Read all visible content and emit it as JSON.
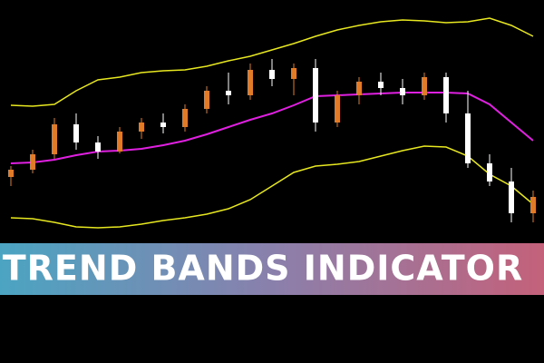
{
  "chart_data": {
    "type": "candlestick",
    "title": "TREND BANDS INDICATOR",
    "categories": [
      null,
      null,
      null,
      null,
      null,
      null,
      null,
      null,
      null,
      null,
      null,
      null,
      null,
      null,
      null,
      null,
      null,
      null,
      null,
      null,
      null,
      null,
      null,
      null,
      null
    ],
    "ylim": [
      0,
      265
    ],
    "up_color": "#e07b2a",
    "down_color": "#ffffff",
    "candles": {
      "open": [
        70,
        78,
        95,
        128,
        108,
        98,
        120,
        130,
        125,
        145,
        165,
        160,
        188,
        178,
        190,
        130,
        160,
        175,
        168,
        160,
        180,
        140,
        85,
        65,
        30
      ],
      "high": [
        82,
        100,
        135,
        140,
        115,
        125,
        135,
        140,
        150,
        170,
        185,
        195,
        200,
        195,
        200,
        165,
        180,
        185,
        178,
        185,
        185,
        165,
        95,
        80,
        55
      ],
      "low": [
        60,
        74,
        90,
        100,
        90,
        96,
        112,
        118,
        120,
        140,
        150,
        155,
        170,
        160,
        120,
        125,
        150,
        160,
        150,
        155,
        130,
        80,
        60,
        20,
        20
      ],
      "close": [
        78,
        95,
        128,
        108,
        98,
        120,
        130,
        125,
        145,
        165,
        160,
        188,
        178,
        190,
        130,
        160,
        175,
        168,
        160,
        180,
        140,
        85,
        65,
        30,
        48
      ]
    },
    "series": [
      {
        "color": "#e8e820",
        "values": [
          149,
          148,
          150,
          165,
          177,
          180,
          185,
          187,
          188,
          192,
          198,
          203,
          210,
          217,
          225,
          232,
          237,
          241,
          243,
          242,
          240,
          241,
          245,
          237,
          225
        ]
      },
      {
        "color": "#e020e0",
        "values": [
          85,
          86,
          89,
          94,
          98,
          99,
          101,
          105,
          110,
          117,
          125,
          133,
          140,
          149,
          159,
          160,
          161,
          162,
          163,
          163,
          163,
          162,
          150,
          130,
          110
        ]
      },
      {
        "color": "#e8e820",
        "values": [
          25,
          24,
          20,
          15,
          14,
          15,
          18,
          22,
          25,
          29,
          35,
          45,
          60,
          75,
          82,
          84,
          87,
          93,
          99,
          104,
          103,
          93,
          73,
          60,
          40
        ]
      }
    ]
  }
}
